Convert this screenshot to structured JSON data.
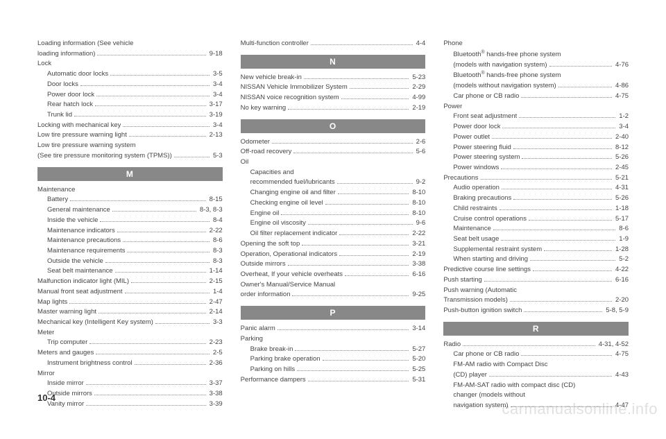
{
  "pageNumber": "10-4",
  "watermark": "carmanualsonline.info",
  "columns": [
    {
      "items": [
        {
          "label": "Loading information (See vehicle",
          "type": "plain"
        },
        {
          "label": "loading information)",
          "page": "9-18"
        },
        {
          "label": "Lock",
          "type": "plain"
        },
        {
          "label": "Automatic door locks",
          "page": "3-5",
          "indent": 1
        },
        {
          "label": "Door locks",
          "page": "3-4",
          "indent": 1
        },
        {
          "label": "Power door lock",
          "page": "3-4",
          "indent": 1
        },
        {
          "label": "Rear hatch lock",
          "page": "3-17",
          "indent": 1
        },
        {
          "label": "Trunk lid",
          "page": "3-19",
          "indent": 1
        },
        {
          "label": "Locking with mechanical key",
          "page": "3-4"
        },
        {
          "label": "Low tire pressure warning light",
          "page": "2-13"
        },
        {
          "label": "Low tire pressure warning system",
          "type": "plain"
        },
        {
          "label": "(See tire pressure monitoring system (TPMS))",
          "page": "5-3"
        },
        {
          "type": "header",
          "label": "M"
        },
        {
          "label": "Maintenance",
          "type": "plain"
        },
        {
          "label": "Battery",
          "page": "8-15",
          "indent": 1
        },
        {
          "label": "General maintenance",
          "page": "8-3, 8-3",
          "indent": 1
        },
        {
          "label": "Inside the vehicle",
          "page": "8-4",
          "indent": 1
        },
        {
          "label": "Maintenance indicators",
          "page": "2-22",
          "indent": 1
        },
        {
          "label": "Maintenance precautions",
          "page": "8-6",
          "indent": 1
        },
        {
          "label": "Maintenance requirements",
          "page": "8-3",
          "indent": 1
        },
        {
          "label": "Outside the vehicle",
          "page": "8-3",
          "indent": 1
        },
        {
          "label": "Seat belt maintenance",
          "page": "1-14",
          "indent": 1
        },
        {
          "label": "Malfunction indicator light (MIL)",
          "page": "2-15"
        },
        {
          "label": "Manual front seat adjustment",
          "page": "1-4"
        },
        {
          "label": "Map lights",
          "page": "2-47"
        },
        {
          "label": "Master warning light",
          "page": "2-14"
        },
        {
          "label": "Mechanical key (Intelligent Key system)",
          "page": "3-3"
        },
        {
          "label": "Meter",
          "type": "plain"
        },
        {
          "label": "Trip computer",
          "page": "2-23",
          "indent": 1
        },
        {
          "label": "Meters and gauges",
          "page": "2-5"
        },
        {
          "label": "Instrument brightness control",
          "page": "2-36",
          "indent": 1
        },
        {
          "label": "Mirror",
          "type": "plain"
        },
        {
          "label": "Inside mirror",
          "page": "3-37",
          "indent": 1
        },
        {
          "label": "Outside mirrors",
          "page": "3-38",
          "indent": 1
        },
        {
          "label": "Vanity mirror",
          "page": "3-39",
          "indent": 1
        }
      ]
    },
    {
      "items": [
        {
          "label": "Multi-function controller",
          "page": "4-4"
        },
        {
          "type": "header",
          "label": "N"
        },
        {
          "label": "New vehicle break-in",
          "page": "5-23"
        },
        {
          "label": "NISSAN Vehicle Immobilizer System",
          "page": "2-29"
        },
        {
          "label": "NISSAN voice recognition system",
          "page": "4-99"
        },
        {
          "label": "No key warning",
          "page": "2-19"
        },
        {
          "type": "header",
          "label": "O"
        },
        {
          "label": "Odometer",
          "page": "2-6"
        },
        {
          "label": "Off-road recovery",
          "page": "5-6"
        },
        {
          "label": "Oil",
          "type": "plain"
        },
        {
          "label": "Capacities and",
          "type": "plain",
          "indent": 1
        },
        {
          "label": "recommended fuel/lubricants",
          "page": "9-2",
          "indent": 1
        },
        {
          "label": "Changing engine oil and filter",
          "page": "8-10",
          "indent": 1
        },
        {
          "label": "Checking engine oil level",
          "page": "8-10",
          "indent": 1
        },
        {
          "label": "Engine oil",
          "page": "8-10",
          "indent": 1
        },
        {
          "label": "Engine oil viscosity",
          "page": "9-6",
          "indent": 1
        },
        {
          "label": "Oil filter replacement indicator",
          "page": "2-22",
          "indent": 1
        },
        {
          "label": "Opening the soft top",
          "page": "3-21"
        },
        {
          "label": "Operation, Operational indicators",
          "page": "2-19"
        },
        {
          "label": "Outside mirrors",
          "page": "3-38"
        },
        {
          "label": "Overheat, If your vehicle overheats",
          "page": "6-16"
        },
        {
          "label": "Owner's Manual/Service Manual",
          "type": "plain"
        },
        {
          "label": "order information",
          "page": "9-25"
        },
        {
          "type": "header",
          "label": "P"
        },
        {
          "label": "Panic alarm",
          "page": "3-14"
        },
        {
          "label": "Parking",
          "type": "plain"
        },
        {
          "label": "Brake break-in",
          "page": "5-27",
          "indent": 1
        },
        {
          "label": "Parking brake operation",
          "page": "5-20",
          "indent": 1
        },
        {
          "label": "Parking on hills",
          "page": "5-25",
          "indent": 1
        },
        {
          "label": "Performance dampers",
          "page": "5-31"
        }
      ]
    },
    {
      "items": [
        {
          "label": "Phone",
          "type": "plain"
        },
        {
          "label": "Bluetooth® hands-free phone system",
          "type": "plain",
          "indent": 1,
          "sup": true
        },
        {
          "label": "(models with navigation system)",
          "page": "4-76",
          "indent": 1
        },
        {
          "label": "Bluetooth® hands-free phone system",
          "type": "plain",
          "indent": 1,
          "sup": true
        },
        {
          "label": "(models without navigation system)",
          "page": "4-86",
          "indent": 1
        },
        {
          "label": "Car phone or CB radio",
          "page": "4-75",
          "indent": 1
        },
        {
          "label": "Power",
          "type": "plain"
        },
        {
          "label": "Front seat adjustment",
          "page": "1-2",
          "indent": 1
        },
        {
          "label": "Power door lock",
          "page": "3-4",
          "indent": 1
        },
        {
          "label": "Power outlet",
          "page": "2-40",
          "indent": 1
        },
        {
          "label": "Power steering fluid",
          "page": "8-12",
          "indent": 1
        },
        {
          "label": "Power steering system",
          "page": "5-26",
          "indent": 1
        },
        {
          "label": "Power windows",
          "page": "2-45",
          "indent": 1
        },
        {
          "label": "Precautions",
          "page": "5-21"
        },
        {
          "label": "Audio operation",
          "page": "4-31",
          "indent": 1
        },
        {
          "label": "Braking precautions",
          "page": "5-26",
          "indent": 1
        },
        {
          "label": "Child restraints",
          "page": "1-18",
          "indent": 1
        },
        {
          "label": "Cruise control operations",
          "page": "5-17",
          "indent": 1
        },
        {
          "label": "Maintenance",
          "page": "8-6",
          "indent": 1
        },
        {
          "label": "Seat belt usage",
          "page": "1-9",
          "indent": 1
        },
        {
          "label": "Supplemental restraint system",
          "page": "1-28",
          "indent": 1
        },
        {
          "label": "When starting and driving",
          "page": "5-2",
          "indent": 1
        },
        {
          "label": "Predictive course line settings",
          "page": "4-22"
        },
        {
          "label": "Push starting",
          "page": "6-16"
        },
        {
          "label": "Push warning (Automatic",
          "type": "plain"
        },
        {
          "label": "Transmission models)",
          "page": "2-20"
        },
        {
          "label": "Push-button ignition switch",
          "page": "5-8, 5-9"
        },
        {
          "type": "header",
          "label": "R"
        },
        {
          "label": "Radio",
          "page": "4-31, 4-52"
        },
        {
          "label": "Car phone or CB radio",
          "page": "4-75",
          "indent": 1
        },
        {
          "label": "FM-AM radio with Compact Disc",
          "type": "plain",
          "indent": 1
        },
        {
          "label": "(CD) player",
          "page": "4-43",
          "indent": 1
        },
        {
          "label": "FM-AM-SAT radio with compact disc (CD)",
          "type": "plain",
          "indent": 1
        },
        {
          "label": "changer (models without",
          "type": "plain",
          "indent": 1
        },
        {
          "label": "navigation system)",
          "page": "4-47",
          "indent": 1
        }
      ]
    }
  ]
}
